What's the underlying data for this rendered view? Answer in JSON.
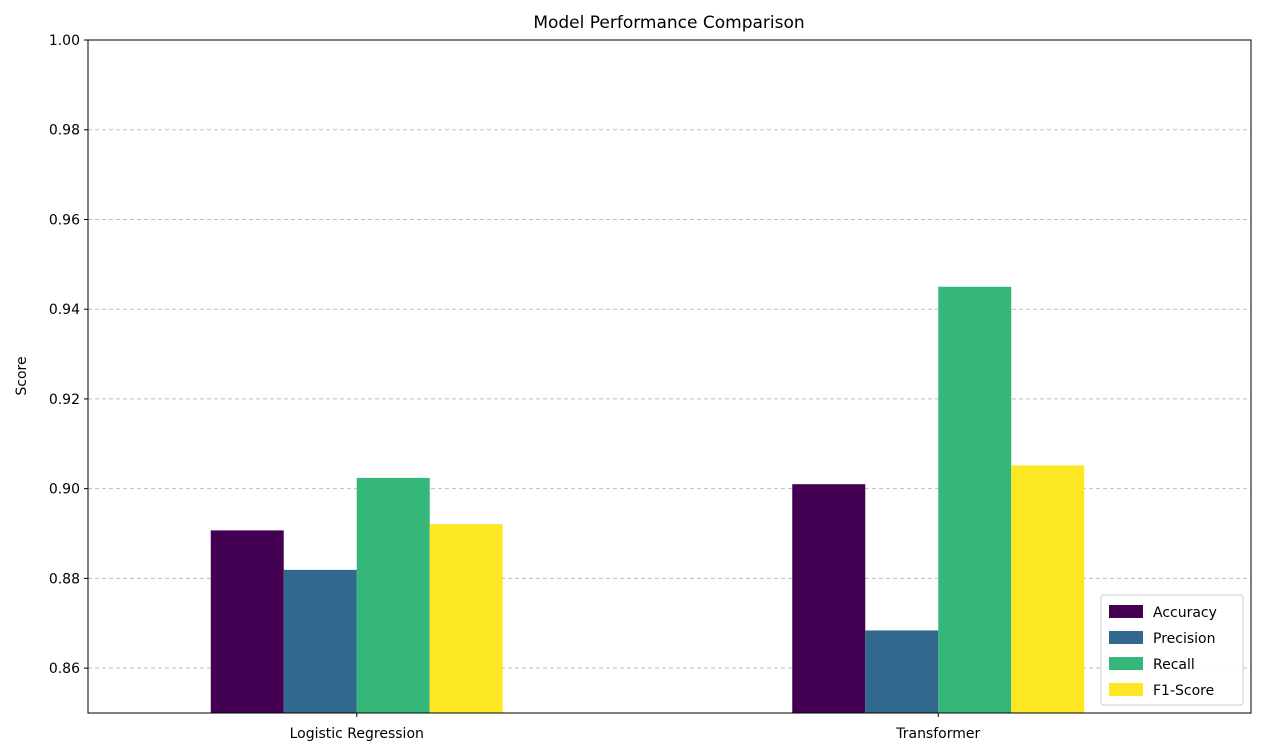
{
  "chart_data": {
    "type": "bar",
    "title": "Model Performance Comparison",
    "xlabel": "",
    "ylabel": "Score",
    "ylim": [
      0.85,
      1.0
    ],
    "yticks": [
      "0.86",
      "0.88",
      "0.90",
      "0.92",
      "0.94",
      "0.96",
      "0.98",
      "1.00"
    ],
    "grid": "y, dashed",
    "legend_position": "lower right",
    "categories": [
      "Logistic Regression",
      "Transformer"
    ],
    "series": [
      {
        "name": "Accuracy",
        "color": "#440154",
        "values": [
          0.8907,
          0.901
        ]
      },
      {
        "name": "Precision",
        "color": "#31688e",
        "values": [
          0.8819,
          0.8684
        ]
      },
      {
        "name": "Recall",
        "color": "#35b779",
        "values": [
          0.9024,
          0.945
        ]
      },
      {
        "name": "F1-Score",
        "color": "#fde725",
        "values": [
          0.8921,
          0.9052
        ]
      }
    ]
  }
}
